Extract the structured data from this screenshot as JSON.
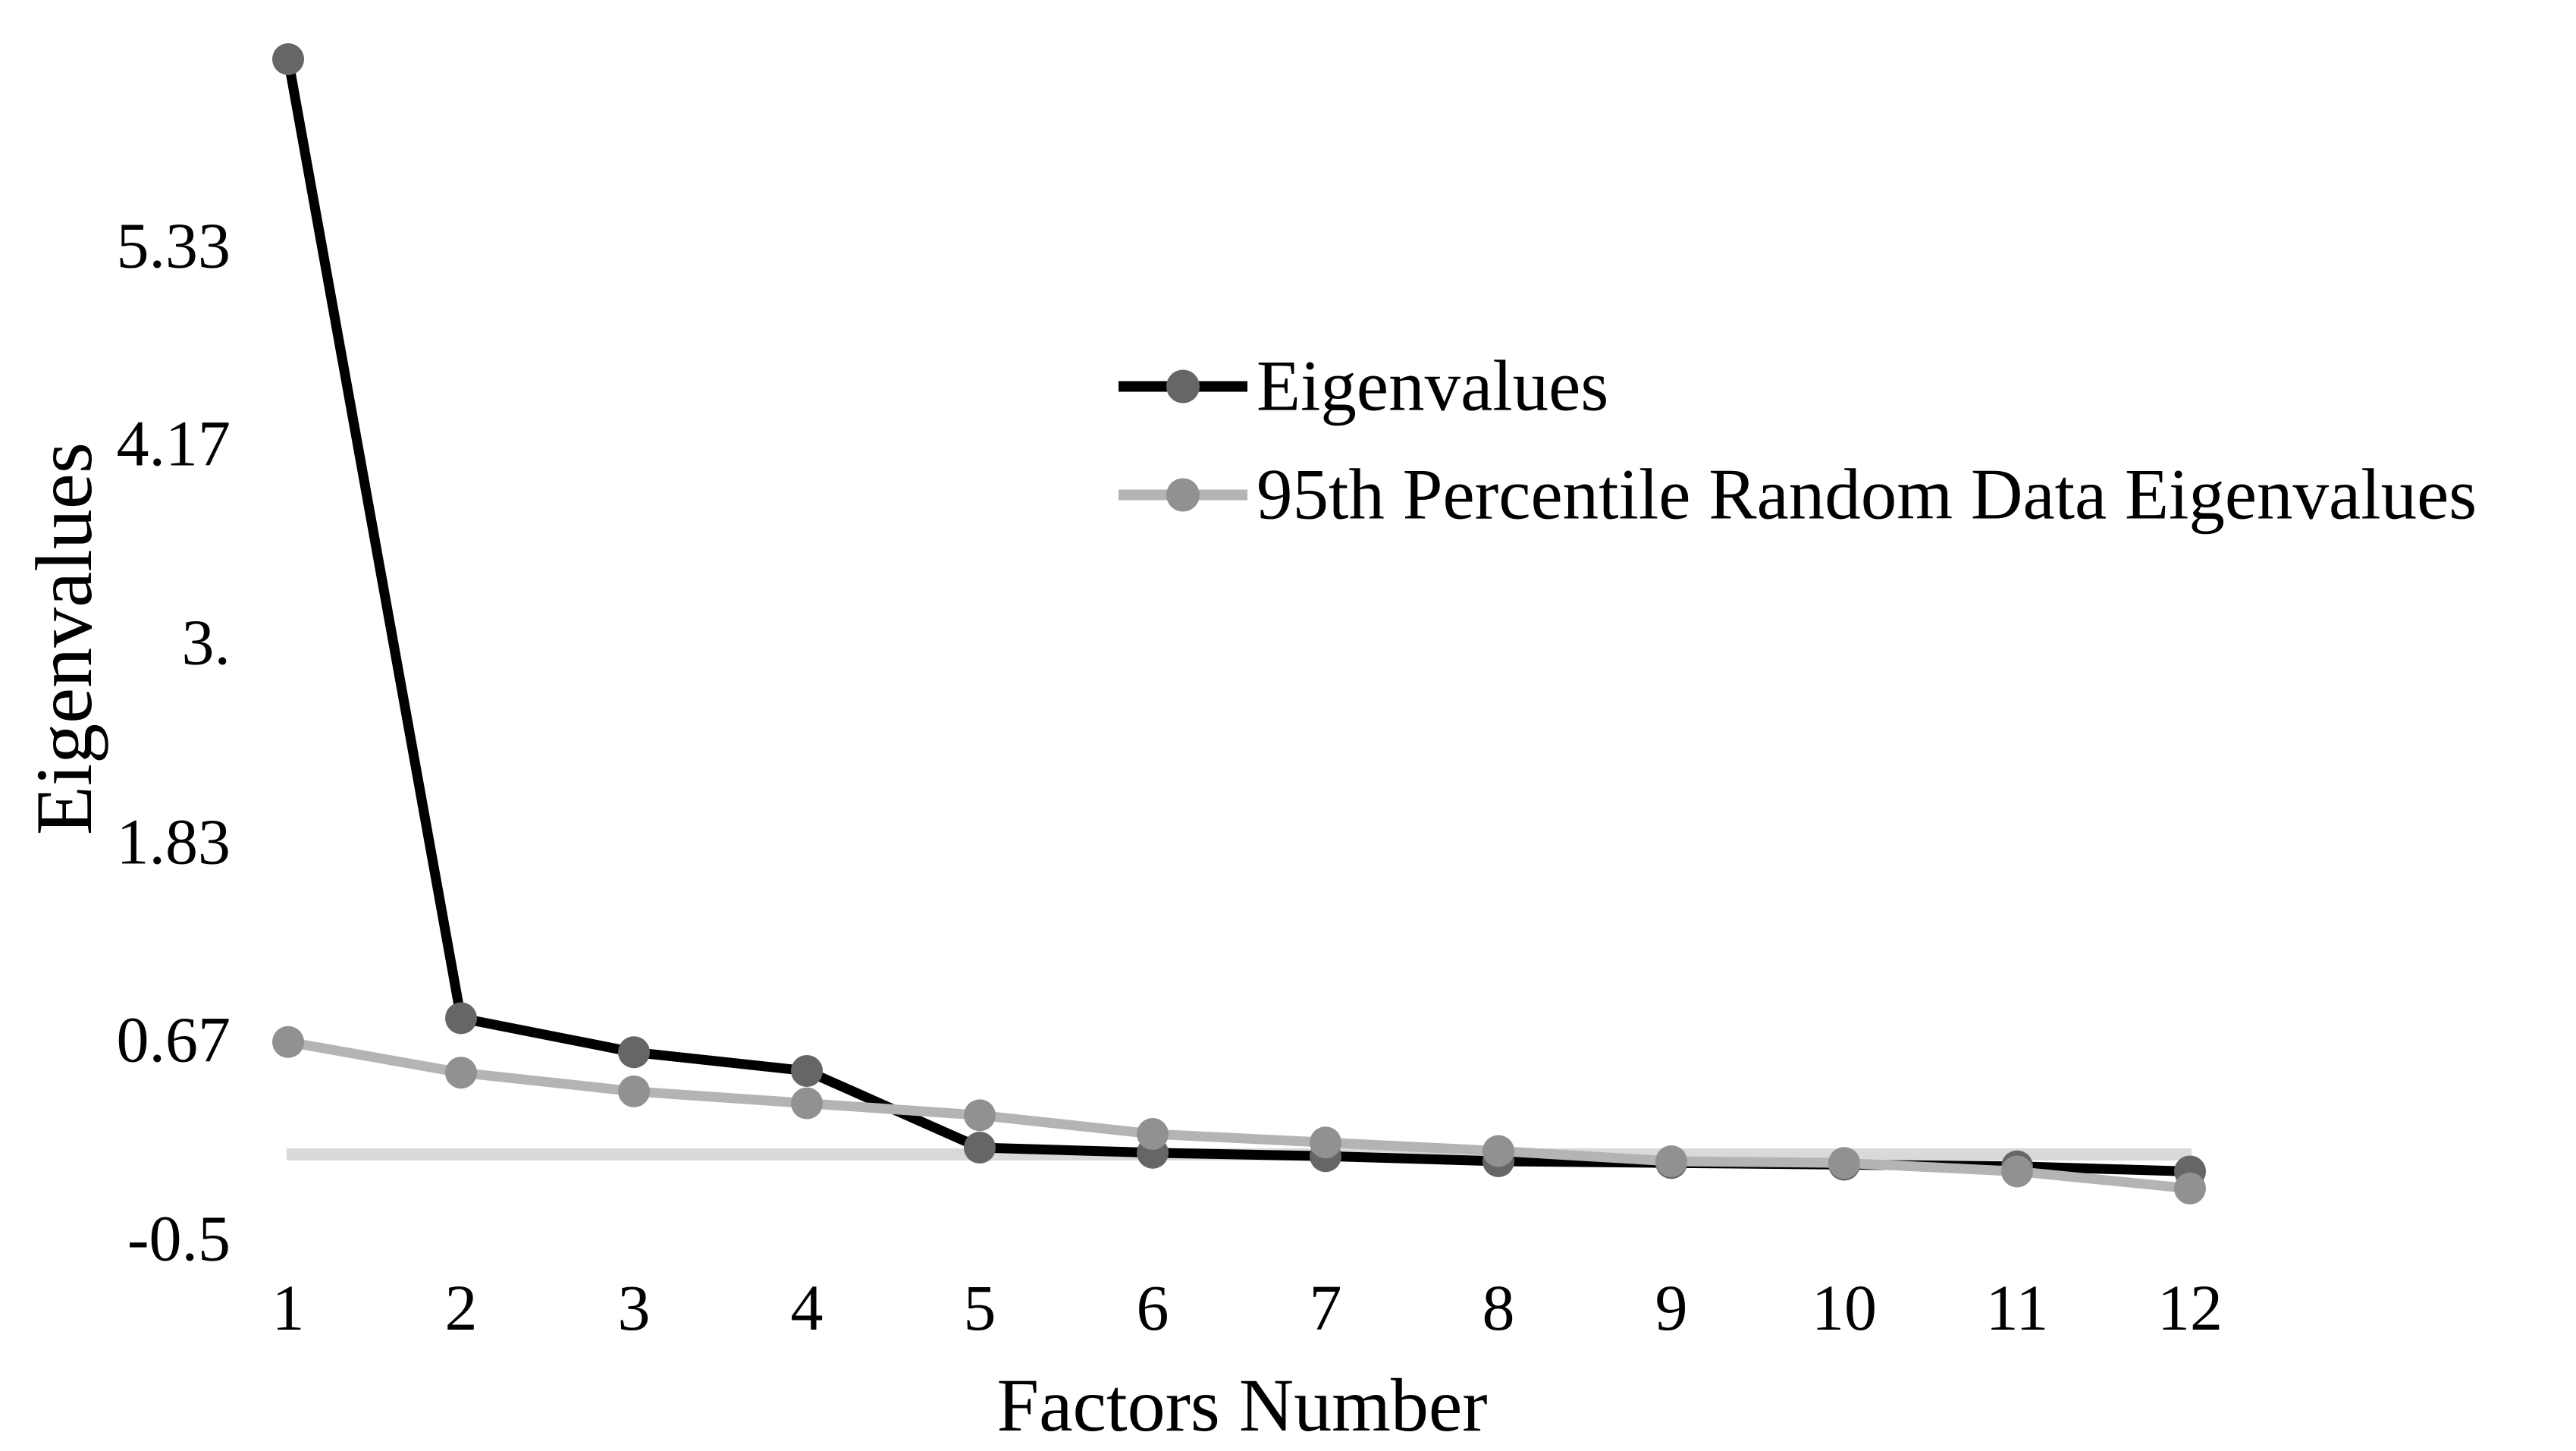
{
  "figure": {
    "background": "#ffffff",
    "text_color": "#000000"
  },
  "chart_data": {
    "type": "line",
    "title": "",
    "xlabel": "Factors Number",
    "ylabel": "Eigenvalues",
    "x": [
      1,
      2,
      3,
      4,
      5,
      6,
      7,
      8,
      9,
      10,
      11,
      12
    ],
    "x_tick_labels": [
      "1",
      "2",
      "3",
      "4",
      "5",
      "6",
      "7",
      "8",
      "9",
      "10",
      "11",
      "12"
    ],
    "y_ticks": [
      {
        "value": 5.33,
        "label": "5.33"
      },
      {
        "value": 4.17,
        "label": "4.17"
      },
      {
        "value": 3.0,
        "label": "3."
      },
      {
        "value": 1.83,
        "label": "1.83"
      },
      {
        "value": 0.67,
        "label": "0.67"
      },
      {
        "value": -0.5,
        "label": "-0.5"
      }
    ],
    "ylim": [
      -0.6,
      6.5
    ],
    "grid": false,
    "zero_line": {
      "value": 0,
      "color": "#d9d9d9"
    },
    "legend_position": "inside-upper-right",
    "series": [
      {
        "name": "Eigenvalues",
        "values": [
          6.43,
          0.8,
          0.6,
          0.49,
          0.04,
          0.01,
          -0.01,
          -0.04,
          -0.05,
          -0.06,
          -0.07,
          -0.1
        ],
        "line_color": "#000000",
        "marker_color": "#666666",
        "marker": "circle"
      },
      {
        "name": "95th Percentile Random Data Eigenvalues",
        "values": [
          0.66,
          0.48,
          0.37,
          0.3,
          0.23,
          0.12,
          0.07,
          0.02,
          -0.04,
          -0.05,
          -0.1,
          -0.2
        ],
        "line_color": "#b4b4b4",
        "marker_color": "#919191",
        "marker": "circle"
      }
    ]
  }
}
